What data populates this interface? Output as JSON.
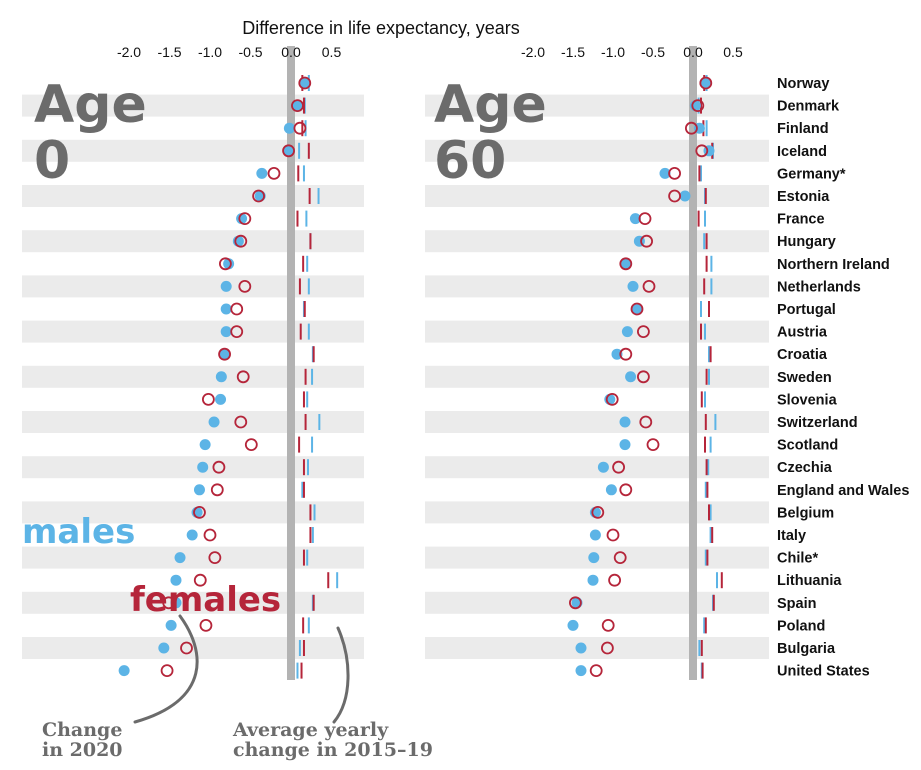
{
  "chart_data": {
    "type": "dot",
    "title": "Difference in life expectancy, years",
    "x_ticks": [
      "-2.0",
      "-1.5",
      "-1.0",
      "-0.5",
      "0.0",
      "0.5"
    ],
    "xlim": [
      -2.2,
      0.6
    ],
    "colors": {
      "males": "#5cb4e6",
      "females": "#b5253a",
      "stripe": "#ebebeb",
      "zero": "#b3b3b3",
      "annot": "#6b6b6b"
    },
    "legend": {
      "males": "males",
      "females": "females"
    },
    "notes": {
      "change_2020": [
        "Change",
        "in 2020"
      ],
      "avg_yearly": [
        "Average yearly",
        "change in 2015–19"
      ]
    },
    "countries": [
      "Norway",
      "Denmark",
      "Finland",
      "Iceland",
      "Germany*",
      "Estonia",
      "France",
      "Hungary",
      "Northern Ireland",
      "Netherlands",
      "Portugal",
      "Austria",
      "Croatia",
      "Sweden",
      "Slovenia",
      "Switzerland",
      "Scotland",
      "Czechia",
      "England and Wales",
      "Belgium",
      "Italy",
      "Chile*",
      "Lithuania",
      "Spain",
      "Poland",
      "Bulgaria",
      "United States"
    ],
    "panels": [
      {
        "label": [
          "Age",
          "0"
        ],
        "males_2020": [
          0.17,
          0.07,
          -0.02,
          -0.03,
          -0.36,
          -0.38,
          -0.61,
          -0.65,
          -0.77,
          -0.8,
          -0.8,
          -0.8,
          -0.82,
          -0.86,
          -0.87,
          -0.95,
          -1.06,
          -1.09,
          -1.13,
          -1.16,
          -1.22,
          -1.37,
          -1.42,
          -1.42,
          -1.48,
          -1.57,
          -2.06
        ],
        "females_2020": [
          0.17,
          0.08,
          0.11,
          -0.03,
          -0.21,
          -0.4,
          -0.57,
          -0.62,
          -0.81,
          -0.57,
          -0.67,
          -0.67,
          -0.82,
          -0.59,
          -1.02,
          -0.62,
          -0.49,
          -0.89,
          -0.91,
          -1.13,
          -1.0,
          -0.94,
          -1.12,
          -1.51,
          -1.05,
          -1.29,
          -1.53
        ],
        "males_avg": [
          0.22,
          0.17,
          0.18,
          0.1,
          0.16,
          0.34,
          0.19,
          0.24,
          0.2,
          0.22,
          0.16,
          0.22,
          0.27,
          0.26,
          0.2,
          0.35,
          0.26,
          0.21,
          0.14,
          0.29,
          0.27,
          0.2,
          0.57,
          0.27,
          0.22,
          0.11,
          0.08
        ],
        "females_avg": [
          0.14,
          0.16,
          0.14,
          0.22,
          0.09,
          0.23,
          0.08,
          0.24,
          0.15,
          0.11,
          0.17,
          0.12,
          0.28,
          0.18,
          0.16,
          0.18,
          0.1,
          0.16,
          0.16,
          0.24,
          0.24,
          0.16,
          0.46,
          0.28,
          0.15,
          0.16,
          0.13
        ]
      },
      {
        "label": [
          "Age",
          "60"
        ],
        "males_2020": [
          0.15,
          0.03,
          0.08,
          0.2,
          -0.35,
          -0.1,
          -0.72,
          -0.67,
          -0.84,
          -0.75,
          -0.7,
          -0.82,
          -0.95,
          -0.78,
          -1.04,
          -0.85,
          -0.85,
          -1.12,
          -1.02,
          -1.22,
          -1.22,
          -1.24,
          -1.25,
          -1.45,
          -1.5,
          -1.4,
          -1.4
        ],
        "females_2020": [
          0.16,
          0.06,
          -0.02,
          0.11,
          -0.23,
          -0.23,
          -0.6,
          -0.58,
          -0.84,
          -0.55,
          -0.7,
          -0.62,
          -0.84,
          -0.62,
          -1.01,
          -0.59,
          -0.5,
          -0.93,
          -0.84,
          -1.19,
          -1.0,
          -0.91,
          -0.98,
          -1.47,
          -1.06,
          -1.07,
          -1.21
        ],
        "males_avg": [
          0.17,
          0.07,
          0.17,
          0.25,
          0.1,
          0.15,
          0.15,
          0.14,
          0.23,
          0.23,
          0.1,
          0.15,
          0.2,
          0.2,
          0.15,
          0.28,
          0.22,
          0.19,
          0.16,
          0.22,
          0.22,
          0.16,
          0.3,
          0.25,
          0.14,
          0.08,
          0.11
        ],
        "females_avg": [
          0.14,
          0.1,
          0.13,
          0.24,
          0.08,
          0.16,
          0.07,
          0.17,
          0.17,
          0.14,
          0.2,
          0.1,
          0.22,
          0.17,
          0.11,
          0.16,
          0.15,
          0.17,
          0.18,
          0.2,
          0.24,
          0.18,
          0.36,
          0.26,
          0.16,
          0.11,
          0.12
        ]
      }
    ]
  }
}
